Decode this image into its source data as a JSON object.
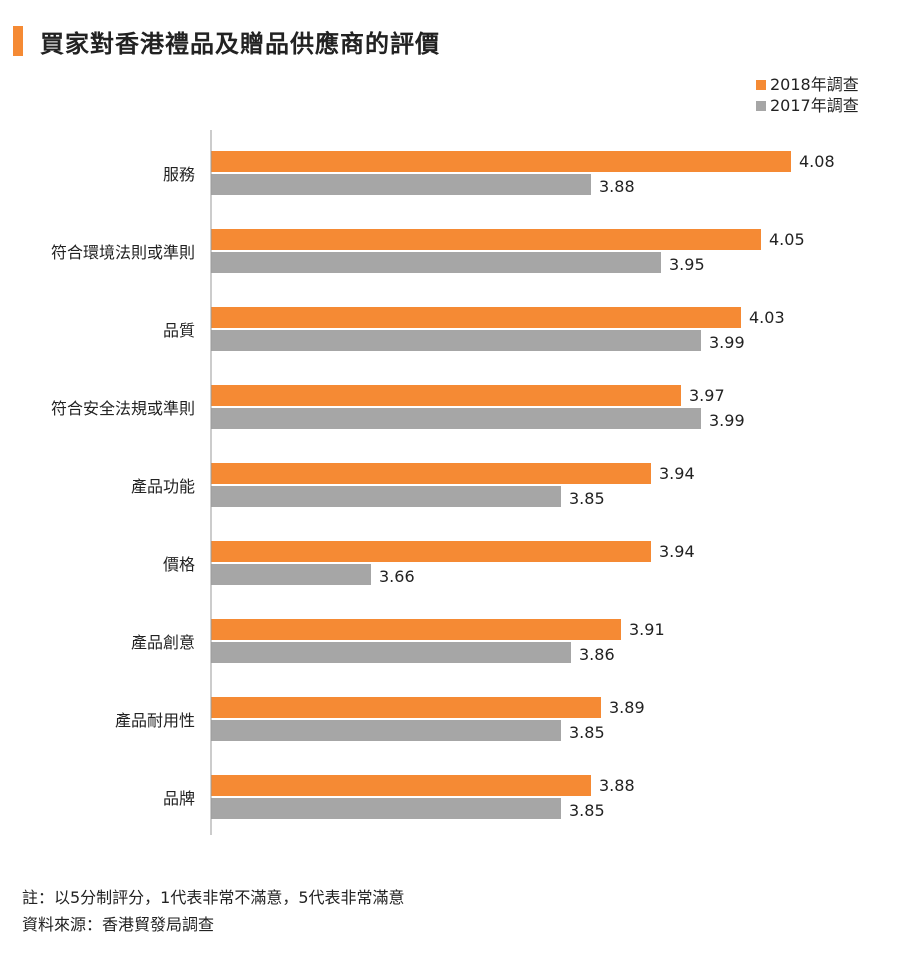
{
  "title": "買家對香港禮品及贈品供應商的評價",
  "colors": {
    "accent": "#F58A34",
    "s2018": "#F58A34",
    "s2017": "#A6A6A6",
    "axis": "#999999"
  },
  "chart_data": {
    "type": "bar",
    "orientation": "horizontal",
    "categories": [
      "服務",
      "符合環境法則或準則",
      "品質",
      "符合安全法規或準則",
      "產品功能",
      "價格",
      "產品創意",
      "產品耐用性",
      "品牌"
    ],
    "series": [
      {
        "name": "2018年調查",
        "color": "#F58A34",
        "values": [
          4.08,
          4.05,
          4.03,
          3.97,
          3.94,
          3.94,
          3.91,
          3.89,
          3.88
        ]
      },
      {
        "name": "2017年調查",
        "color": "#A6A6A6",
        "values": [
          3.88,
          3.95,
          3.99,
          3.99,
          3.85,
          3.66,
          3.86,
          3.85,
          3.85
        ]
      }
    ],
    "value_labels": true,
    "legend_position": "top-right",
    "grid": false
  },
  "footnotes": {
    "note": "註：以5分制評分，1代表非常不滿意，5代表非常滿意",
    "source": "資料來源：香港貿發局調查"
  }
}
